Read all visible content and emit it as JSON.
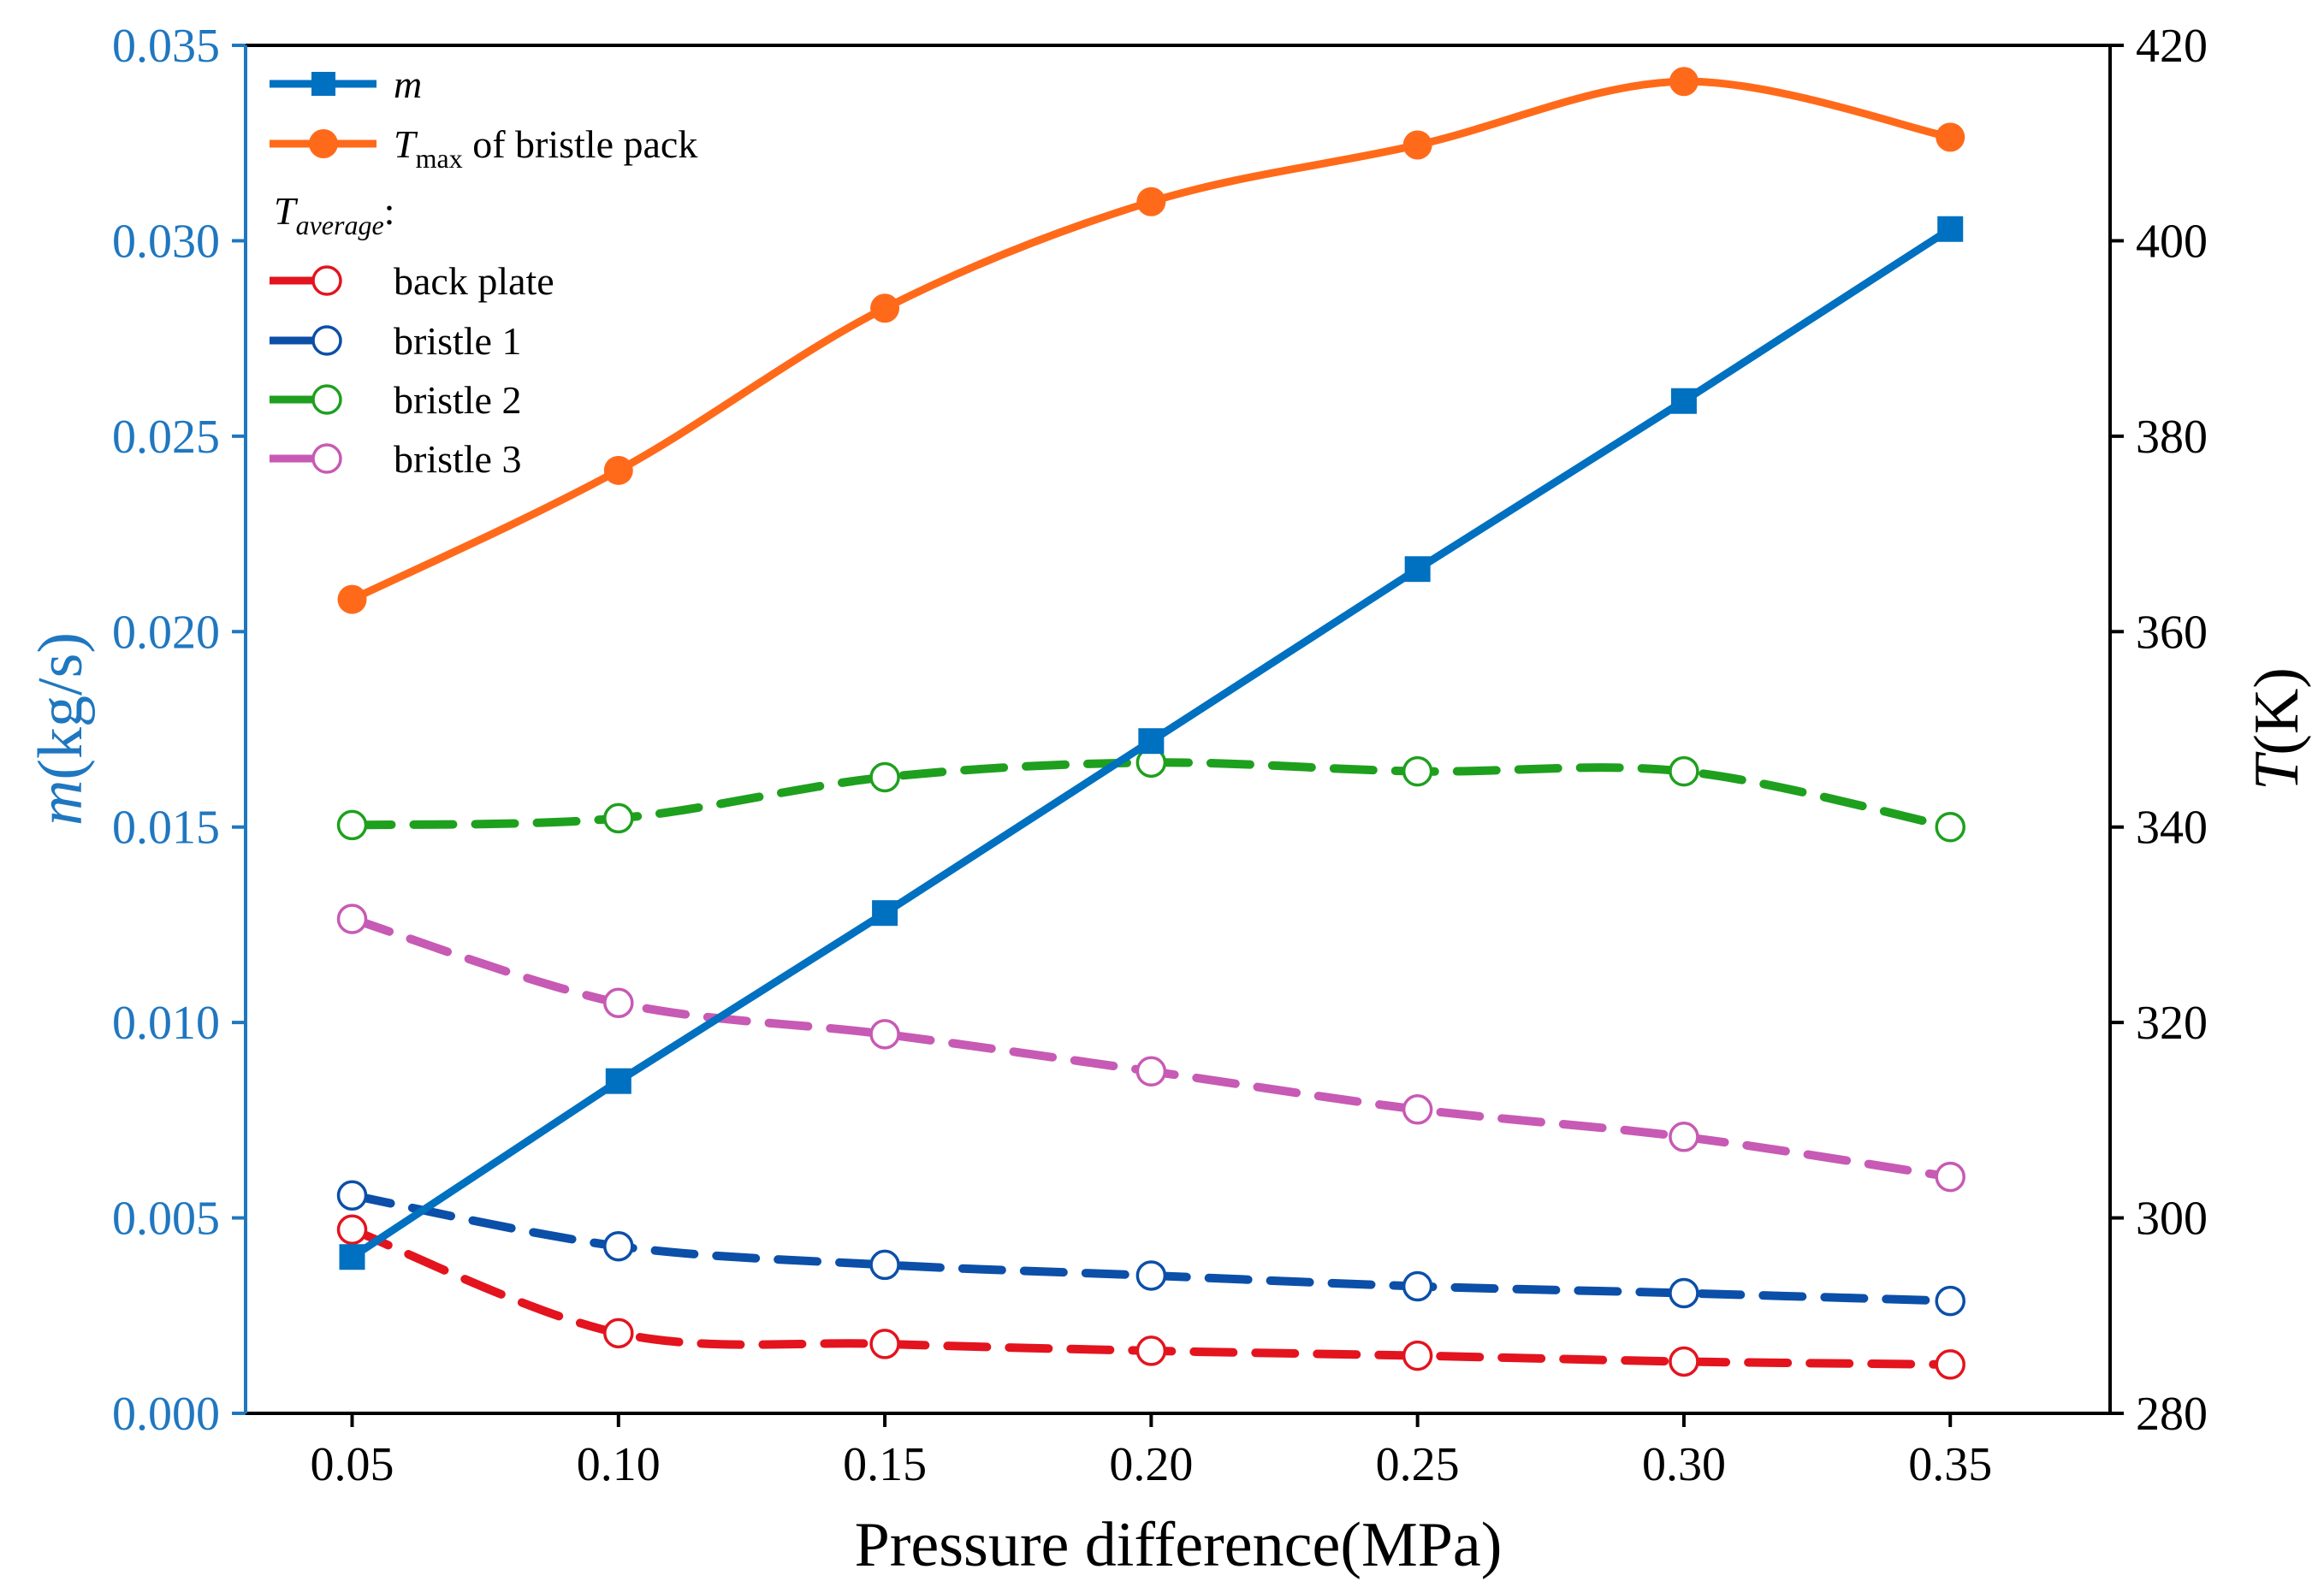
{
  "chart_data": {
    "type": "line",
    "title": "",
    "xlabel": "Pressure difference(MPa)",
    "ylabel_left": "m(kg/s)",
    "ylabel_right": "T(K)",
    "ylabel_left_italic": "m",
    "ylabel_left_unit": "(kg/s)",
    "ylabel_right_italic": "T",
    "ylabel_right_unit": "(K)",
    "x": [
      0.05,
      0.1,
      0.15,
      0.2,
      0.25,
      0.3,
      0.35
    ],
    "x_tick_labels": [
      "0.05",
      "0.10",
      "0.15",
      "0.20",
      "0.25",
      "0.30",
      "0.35"
    ],
    "xlim": [
      0.03,
      0.38
    ],
    "ylim_left": [
      0.0,
      0.035
    ],
    "ylim_right": [
      280,
      420
    ],
    "left_ticks": [
      0.0,
      0.005,
      0.01,
      0.015,
      0.02,
      0.025,
      0.03,
      0.035
    ],
    "left_tick_labels": [
      "0.000",
      "0.005",
      "0.010",
      "0.015",
      "0.020",
      "0.025",
      "0.030",
      "0.035"
    ],
    "right_ticks": [
      280,
      300,
      320,
      340,
      360,
      380,
      400,
      420
    ],
    "right_tick_labels": [
      "280",
      "300",
      "320",
      "340",
      "360",
      "380",
      "400",
      "420"
    ],
    "left_axis_color": "#1f77c0",
    "legend_position": "top-left",
    "legend_group_title": "T",
    "legend_group_title_sub": "average",
    "legend_group_title_suffix": ":",
    "series": [
      {
        "name": "m",
        "sub": "",
        "suffix": "",
        "axis": "left",
        "color": "#0070c0",
        "style": "solid",
        "marker": "square",
        "values": [
          0.004,
          0.0085,
          0.0128,
          0.0172,
          0.0216,
          0.0259,
          0.0303
        ]
      },
      {
        "name": "T",
        "sub": "max",
        "suffix": " of bristle pack",
        "axis": "right",
        "color": "#ff6a1a",
        "style": "solid",
        "marker": "filled-circle",
        "values": [
          363.3,
          376.5,
          393.1,
          404.0,
          409.8,
          416.3,
          410.6
        ]
      },
      {
        "name": "back plate",
        "sub": "",
        "suffix": "",
        "axis": "right",
        "color": "#e3141e",
        "style": "dashed",
        "marker": "open-circle",
        "values": [
          298.8,
          288.2,
          287.1,
          286.4,
          285.9,
          285.3,
          285.0
        ]
      },
      {
        "name": "bristle 1",
        "sub": "",
        "suffix": "",
        "axis": "right",
        "color": "#0b4fa8",
        "style": "dashed",
        "marker": "open-circle",
        "values": [
          302.3,
          297.1,
          295.2,
          294.1,
          293.0,
          292.3,
          291.5
        ]
      },
      {
        "name": "bristle 2",
        "sub": "",
        "suffix": "",
        "axis": "right",
        "color": "#1ea01e",
        "style": "dashed",
        "marker": "open-circle",
        "values": [
          340.2,
          340.9,
          345.1,
          346.6,
          345.7,
          345.7,
          340.0
        ]
      },
      {
        "name": "bristle 3",
        "sub": "",
        "suffix": "",
        "axis": "right",
        "color": "#c75ab4",
        "style": "dashed",
        "marker": "open-circle",
        "values": [
          330.6,
          322.0,
          318.8,
          315.0,
          311.1,
          308.3,
          304.2
        ]
      }
    ]
  }
}
